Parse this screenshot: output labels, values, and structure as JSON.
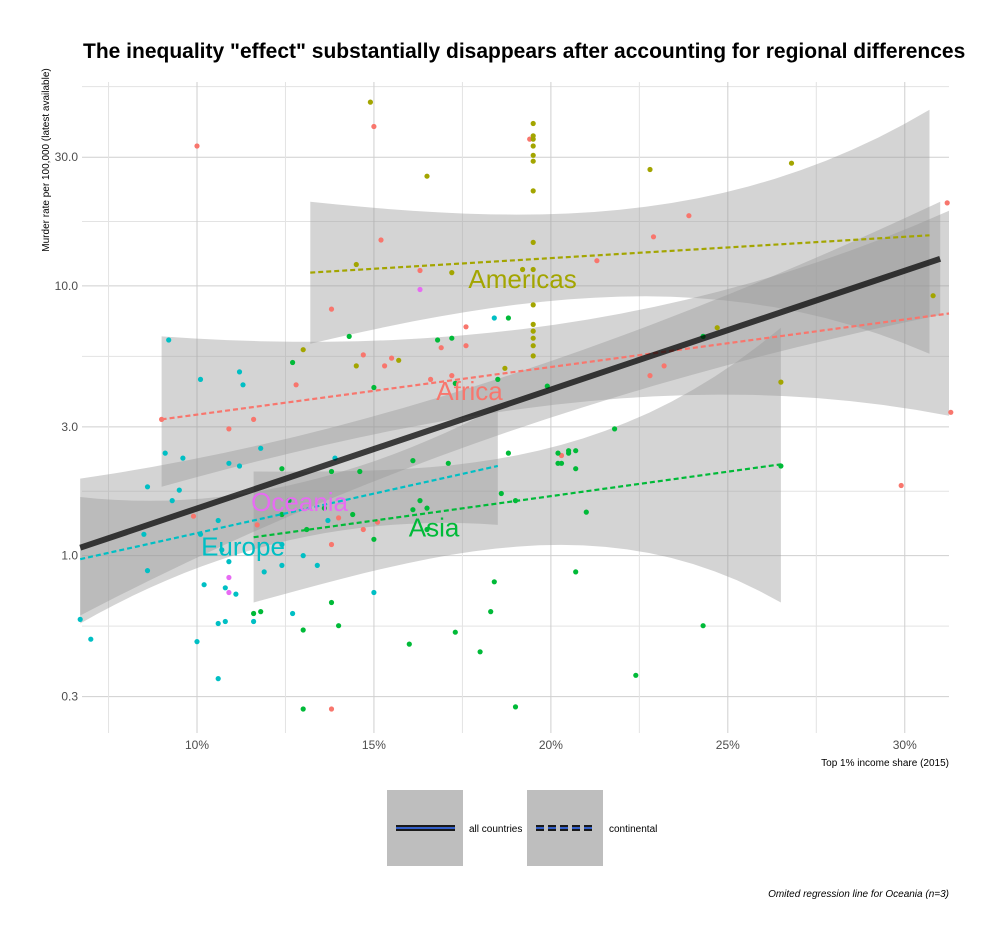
{
  "chart_data": {
    "type": "scatter",
    "title": "The inequality \"effect\" substantially disappears after accounting for regional differences",
    "xlabel": "Top 1% income share (2015)",
    "ylabel": "Murder rate per 100,000 (latest available)",
    "caption": "Omited regression line for Oceania (n=3)",
    "xlim": [
      0.0675,
      0.3125
    ],
    "ylim_log": [
      0.22,
      57
    ],
    "y_scale": "log10",
    "x_ticks": [
      0.1,
      0.15,
      0.2,
      0.25,
      0.3
    ],
    "x_tick_labels": [
      "10%",
      "15%",
      "20%",
      "25%",
      "30%"
    ],
    "y_ticks": [
      0.3,
      1.0,
      3.0,
      10.0,
      30.0
    ],
    "y_tick_labels": [
      "0.3",
      "1.0",
      "3.0",
      "10.0",
      "30.0"
    ],
    "legend": {
      "position": "bottom",
      "entries": [
        {
          "label": "all countries",
          "style": "solid"
        },
        {
          "label": "continental",
          "style": "dashed"
        }
      ]
    },
    "overall_fit": {
      "x": [
        0.067,
        0.31
      ],
      "y": [
        1.07,
        12.6
      ],
      "band_upper": [
        1.93,
        20.5
      ],
      "band_lower": [
        0.6,
        7.8
      ]
    },
    "series": [
      {
        "name": "Africa",
        "color": "#F8766D",
        "label": {
          "text": "Africa",
          "x": 0.177,
          "y": 4.0
        },
        "fit": {
          "x": [
            0.09,
            0.3125
          ],
          "y": [
            3.2,
            7.9
          ],
          "band_upper": [
            6.5,
            19.0
          ],
          "band_lower": [
            1.8,
            3.3
          ]
        },
        "points": [
          [
            0.1,
            33
          ],
          [
            0.15,
            39
          ],
          [
            0.194,
            35
          ],
          [
            0.239,
            18.2
          ],
          [
            0.229,
            15.2
          ],
          [
            0.312,
            20.3
          ],
          [
            0.152,
            14.8
          ],
          [
            0.213,
            12.4
          ],
          [
            0.163,
            11.4
          ],
          [
            0.176,
            7.05
          ],
          [
            0.138,
            8.2
          ],
          [
            0.176,
            6.0
          ],
          [
            0.169,
            5.9
          ],
          [
            0.147,
            5.55
          ],
          [
            0.153,
            5.05
          ],
          [
            0.155,
            5.4
          ],
          [
            0.232,
            5.05
          ],
          [
            0.228,
            4.65
          ],
          [
            0.128,
            4.3
          ],
          [
            0.09,
            3.2
          ],
          [
            0.109,
            2.95
          ],
          [
            0.116,
            3.2
          ],
          [
            0.313,
            3.4
          ],
          [
            0.203,
            2.35
          ],
          [
            0.299,
            1.82
          ],
          [
            0.117,
            1.3
          ],
          [
            0.099,
            1.4
          ],
          [
            0.14,
            1.38
          ],
          [
            0.147,
            1.25
          ],
          [
            0.151,
            1.33
          ],
          [
            0.138,
            1.1
          ],
          [
            0.138,
            0.27
          ],
          [
            0.172,
            4.65
          ],
          [
            0.166,
            4.5
          ]
        ]
      },
      {
        "name": "Americas",
        "color": "#A3A500",
        "label": {
          "text": "Americas",
          "x": 0.192,
          "y": 10.4
        },
        "fit": {
          "x": [
            0.132,
            0.307
          ],
          "y": [
            11.2,
            15.4
          ],
          "band_upper": [
            20.5,
            45.0
          ],
          "band_lower": [
            6.1,
            5.6
          ]
        },
        "points": [
          [
            0.149,
            48
          ],
          [
            0.195,
            40
          ],
          [
            0.195,
            36
          ],
          [
            0.195,
            35
          ],
          [
            0.195,
            33
          ],
          [
            0.195,
            30.5
          ],
          [
            0.195,
            29
          ],
          [
            0.195,
            22.5
          ],
          [
            0.268,
            28.5
          ],
          [
            0.228,
            27
          ],
          [
            0.165,
            25.5
          ],
          [
            0.195,
            14.5
          ],
          [
            0.195,
            11.5
          ],
          [
            0.192,
            11.5
          ],
          [
            0.145,
            12
          ],
          [
            0.195,
            8.5
          ],
          [
            0.195,
            7.2
          ],
          [
            0.195,
            6.8
          ],
          [
            0.195,
            6.4
          ],
          [
            0.195,
            6.0
          ],
          [
            0.195,
            5.5
          ],
          [
            0.13,
            5.8
          ],
          [
            0.157,
            5.3
          ],
          [
            0.145,
            5.05
          ],
          [
            0.187,
            4.95
          ],
          [
            0.247,
            7.0
          ],
          [
            0.308,
            9.2
          ],
          [
            0.265,
            4.4
          ],
          [
            0.172,
            11.2
          ]
        ]
      },
      {
        "name": "Asia",
        "color": "#00BA38",
        "label": {
          "text": "Asia",
          "x": 0.167,
          "y": 1.25
        },
        "fit": {
          "x": [
            0.116,
            0.265
          ],
          "y": [
            1.17,
            2.18
          ],
          "band_upper": [
            2.05,
            7.0
          ],
          "band_lower": [
            0.67,
            0.67
          ]
        },
        "points": [
          [
            0.127,
            5.2
          ],
          [
            0.143,
            6.5
          ],
          [
            0.168,
            6.3
          ],
          [
            0.172,
            6.4
          ],
          [
            0.188,
            7.6
          ],
          [
            0.173,
            4.35
          ],
          [
            0.185,
            4.5
          ],
          [
            0.15,
            4.2
          ],
          [
            0.199,
            4.25
          ],
          [
            0.243,
            6.5
          ],
          [
            0.218,
            2.95
          ],
          [
            0.188,
            2.4
          ],
          [
            0.202,
            2.4
          ],
          [
            0.202,
            2.2
          ],
          [
            0.203,
            2.2
          ],
          [
            0.205,
            2.4
          ],
          [
            0.205,
            2.45
          ],
          [
            0.207,
            2.1
          ],
          [
            0.207,
            2.45
          ],
          [
            0.171,
            2.2
          ],
          [
            0.161,
            2.25
          ],
          [
            0.138,
            2.05
          ],
          [
            0.146,
            2.05
          ],
          [
            0.124,
            2.1
          ],
          [
            0.126,
            1.6
          ],
          [
            0.136,
            1.5
          ],
          [
            0.19,
            1.6
          ],
          [
            0.21,
            1.45
          ],
          [
            0.163,
            1.6
          ],
          [
            0.165,
            1.5
          ],
          [
            0.144,
            1.42
          ],
          [
            0.124,
            1.42
          ],
          [
            0.131,
            1.25
          ],
          [
            0.165,
            1.25
          ],
          [
            0.15,
            1.15
          ],
          [
            0.186,
            1.7
          ],
          [
            0.207,
            0.87
          ],
          [
            0.184,
            0.8
          ],
          [
            0.183,
            0.62
          ],
          [
            0.138,
            0.67
          ],
          [
            0.14,
            0.55
          ],
          [
            0.13,
            0.53
          ],
          [
            0.116,
            0.61
          ],
          [
            0.118,
            0.62
          ],
          [
            0.16,
            0.47
          ],
          [
            0.173,
            0.52
          ],
          [
            0.18,
            0.44
          ],
          [
            0.243,
            0.55
          ],
          [
            0.224,
            0.36
          ],
          [
            0.13,
            0.27
          ],
          [
            0.19,
            0.275
          ],
          [
            0.265,
            2.15
          ],
          [
            0.161,
            1.48
          ]
        ]
      },
      {
        "name": "Europe",
        "color": "#00BFC4",
        "label": {
          "text": "Europe",
          "x": 0.113,
          "y": 1.06
        },
        "fit": {
          "x": [
            0.067,
            0.185
          ],
          "y": [
            0.97,
            2.15
          ],
          "band_upper": [
            1.65,
            3.55
          ],
          "band_lower": [
            0.56,
            1.3
          ]
        },
        "points": [
          [
            0.092,
            6.3
          ],
          [
            0.112,
            4.8
          ],
          [
            0.101,
            4.5
          ],
          [
            0.113,
            4.3
          ],
          [
            0.091,
            2.4
          ],
          [
            0.096,
            2.3
          ],
          [
            0.109,
            2.2
          ],
          [
            0.112,
            2.15
          ],
          [
            0.118,
            2.5
          ],
          [
            0.086,
            1.8
          ],
          [
            0.095,
            1.75
          ],
          [
            0.093,
            1.6
          ],
          [
            0.106,
            1.35
          ],
          [
            0.101,
            1.2
          ],
          [
            0.085,
            1.2
          ],
          [
            0.107,
            1.05
          ],
          [
            0.109,
            0.95
          ],
          [
            0.134,
            0.92
          ],
          [
            0.124,
            0.92
          ],
          [
            0.13,
            1.0
          ],
          [
            0.086,
            0.88
          ],
          [
            0.119,
            0.87
          ],
          [
            0.102,
            0.78
          ],
          [
            0.108,
            0.76
          ],
          [
            0.111,
            0.72
          ],
          [
            0.15,
            0.73
          ],
          [
            0.127,
            0.61
          ],
          [
            0.106,
            0.56
          ],
          [
            0.108,
            0.57
          ],
          [
            0.116,
            0.57
          ],
          [
            0.067,
            0.58
          ],
          [
            0.07,
            0.49
          ],
          [
            0.1,
            0.48
          ],
          [
            0.106,
            0.35
          ],
          [
            0.184,
            7.6
          ],
          [
            0.139,
            2.3
          ],
          [
            0.137,
            1.35
          ],
          [
            0.124,
            1.1
          ]
        ]
      },
      {
        "name": "Oceania",
        "color": "#E76BF3",
        "label": {
          "text": "Oceania",
          "x": 0.129,
          "y": 1.55
        },
        "fit": null,
        "points": [
          [
            0.163,
            9.7
          ],
          [
            0.109,
            0.83
          ],
          [
            0.109,
            0.73
          ]
        ]
      }
    ]
  }
}
